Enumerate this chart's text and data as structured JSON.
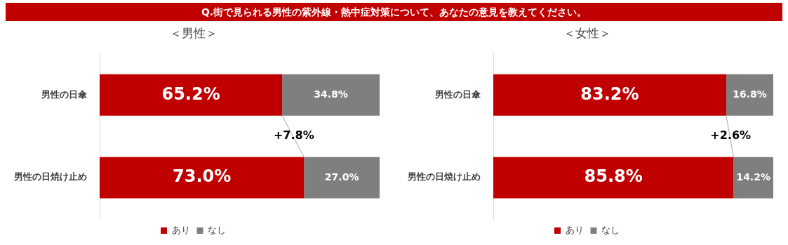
{
  "chart_data": [
    {
      "type": "bar",
      "orientation": "horizontal",
      "stacked": true,
      "title": "＜男性＞",
      "categories": [
        "男性の日傘",
        "男性の日焼け止め"
      ],
      "xlim": [
        0,
        100
      ],
      "tick_labels": "y",
      "legend": "bottom",
      "annotations": [
        "Q.街で見られる男性の紫外線・熱中症対策について、あなたの意見を教えてください。",
        "+7.8%"
      ],
      "series": [
        {
          "name": "あり",
          "color": "#c00000",
          "values": [
            65.2,
            73.0
          ],
          "value_labels": [
            "65.2%",
            "73.0%"
          ]
        },
        {
          "name": "なし",
          "color": "#7f7f7f",
          "values": [
            34.8,
            27.0
          ],
          "value_labels": [
            "34.8%",
            "27.0%"
          ]
        }
      ]
    },
    {
      "type": "bar",
      "orientation": "horizontal",
      "stacked": true,
      "title": "＜女性＞",
      "categories": [
        "男性の日傘",
        "男性の日焼け止め"
      ],
      "xlim": [
        0,
        100
      ],
      "tick_labels": "y",
      "legend": "bottom",
      "annotations": [
        "+2.6%"
      ],
      "series": [
        {
          "name": "あり",
          "color": "#c00000",
          "values": [
            83.2,
            85.8
          ],
          "value_labels": [
            "83.2%",
            "85.8%"
          ]
        },
        {
          "name": "なし",
          "color": "#7f7f7f",
          "values": [
            16.8,
            14.2
          ],
          "value_labels": [
            "16.8%",
            "14.2%"
          ]
        }
      ]
    }
  ]
}
